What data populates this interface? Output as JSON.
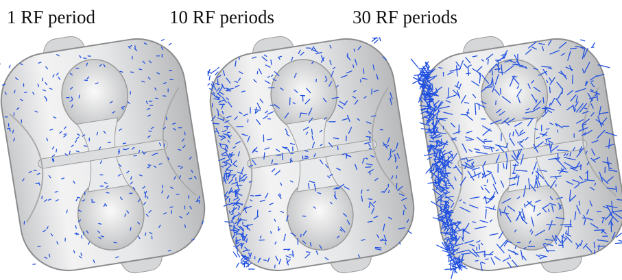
{
  "panels": [
    {
      "label": "1 RF period"
    },
    {
      "label": "10 RF periods"
    },
    {
      "label": "30 RF periods"
    }
  ]
}
